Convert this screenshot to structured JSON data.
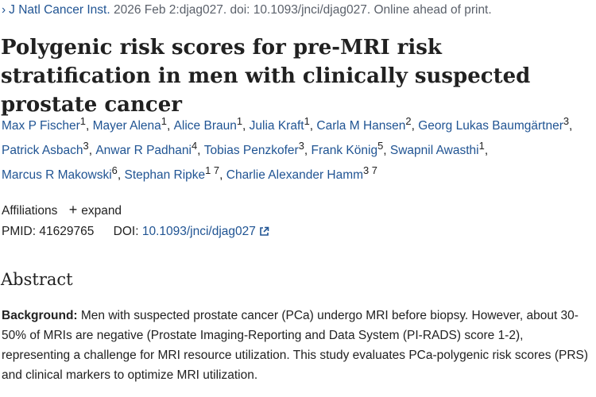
{
  "citation": {
    "journal": "J Natl Cancer Inst.",
    "rest": " 2026 Feb 2:djag027. doi: 10.1093/jnci/djag027. Online ahead of print."
  },
  "title": "Polygenic risk scores for pre-MRI risk stratification in men with clinically suspected prostate cancer",
  "authors": [
    {
      "name": "Max P Fischer",
      "aff": "1"
    },
    {
      "name": "Mayer Alena",
      "aff": "1"
    },
    {
      "name": "Alice Braun",
      "aff": "1"
    },
    {
      "name": "Julia Kraft",
      "aff": "1"
    },
    {
      "name": "Carla M Hansen",
      "aff": "2"
    },
    {
      "name": "Georg Lukas Baumgärtner",
      "aff": "3"
    },
    {
      "name": "Patrick Asbach",
      "aff": "3"
    },
    {
      "name": "Anwar R Padhani",
      "aff": "4"
    },
    {
      "name": "Tobias Penzkofer",
      "aff": "3"
    },
    {
      "name": "Frank König",
      "aff": "5"
    },
    {
      "name": "Swapnil Awasthi",
      "aff": "1"
    },
    {
      "name": "Marcus R Makowski",
      "aff": "6"
    },
    {
      "name": "Stephan Ripke",
      "aff": "1 7"
    },
    {
      "name": "Charlie Alexander Hamm",
      "aff": "3 7"
    }
  ],
  "affiliations": {
    "label": "Affiliations",
    "expand_label": "expand"
  },
  "identifiers": {
    "pmid_label": "PMID:",
    "pmid": "41629765",
    "doi_label": "DOI:",
    "doi": "10.1093/jnci/djag027"
  },
  "abstract": {
    "heading": "Abstract",
    "background_label": "Background:",
    "background_text": " Men with suspected prostate cancer (PCa) undergo MRI before biopsy. However, about 30-50% of MRIs are negative (Prostate Imaging-Reporting and Data System (PI-RADS) score 1-2), representing a challenge for MRI resource utilization. This study evaluates PCa-polygenic risk scores (PRS) and clinical markers to optimize MRI utilization."
  },
  "icons": {
    "chevron": "chevron-right-icon",
    "plus": "plus-icon",
    "external_link": "external-link-icon"
  },
  "colors": {
    "link": "#205493",
    "text": "#212121",
    "muted": "#5b616b"
  }
}
